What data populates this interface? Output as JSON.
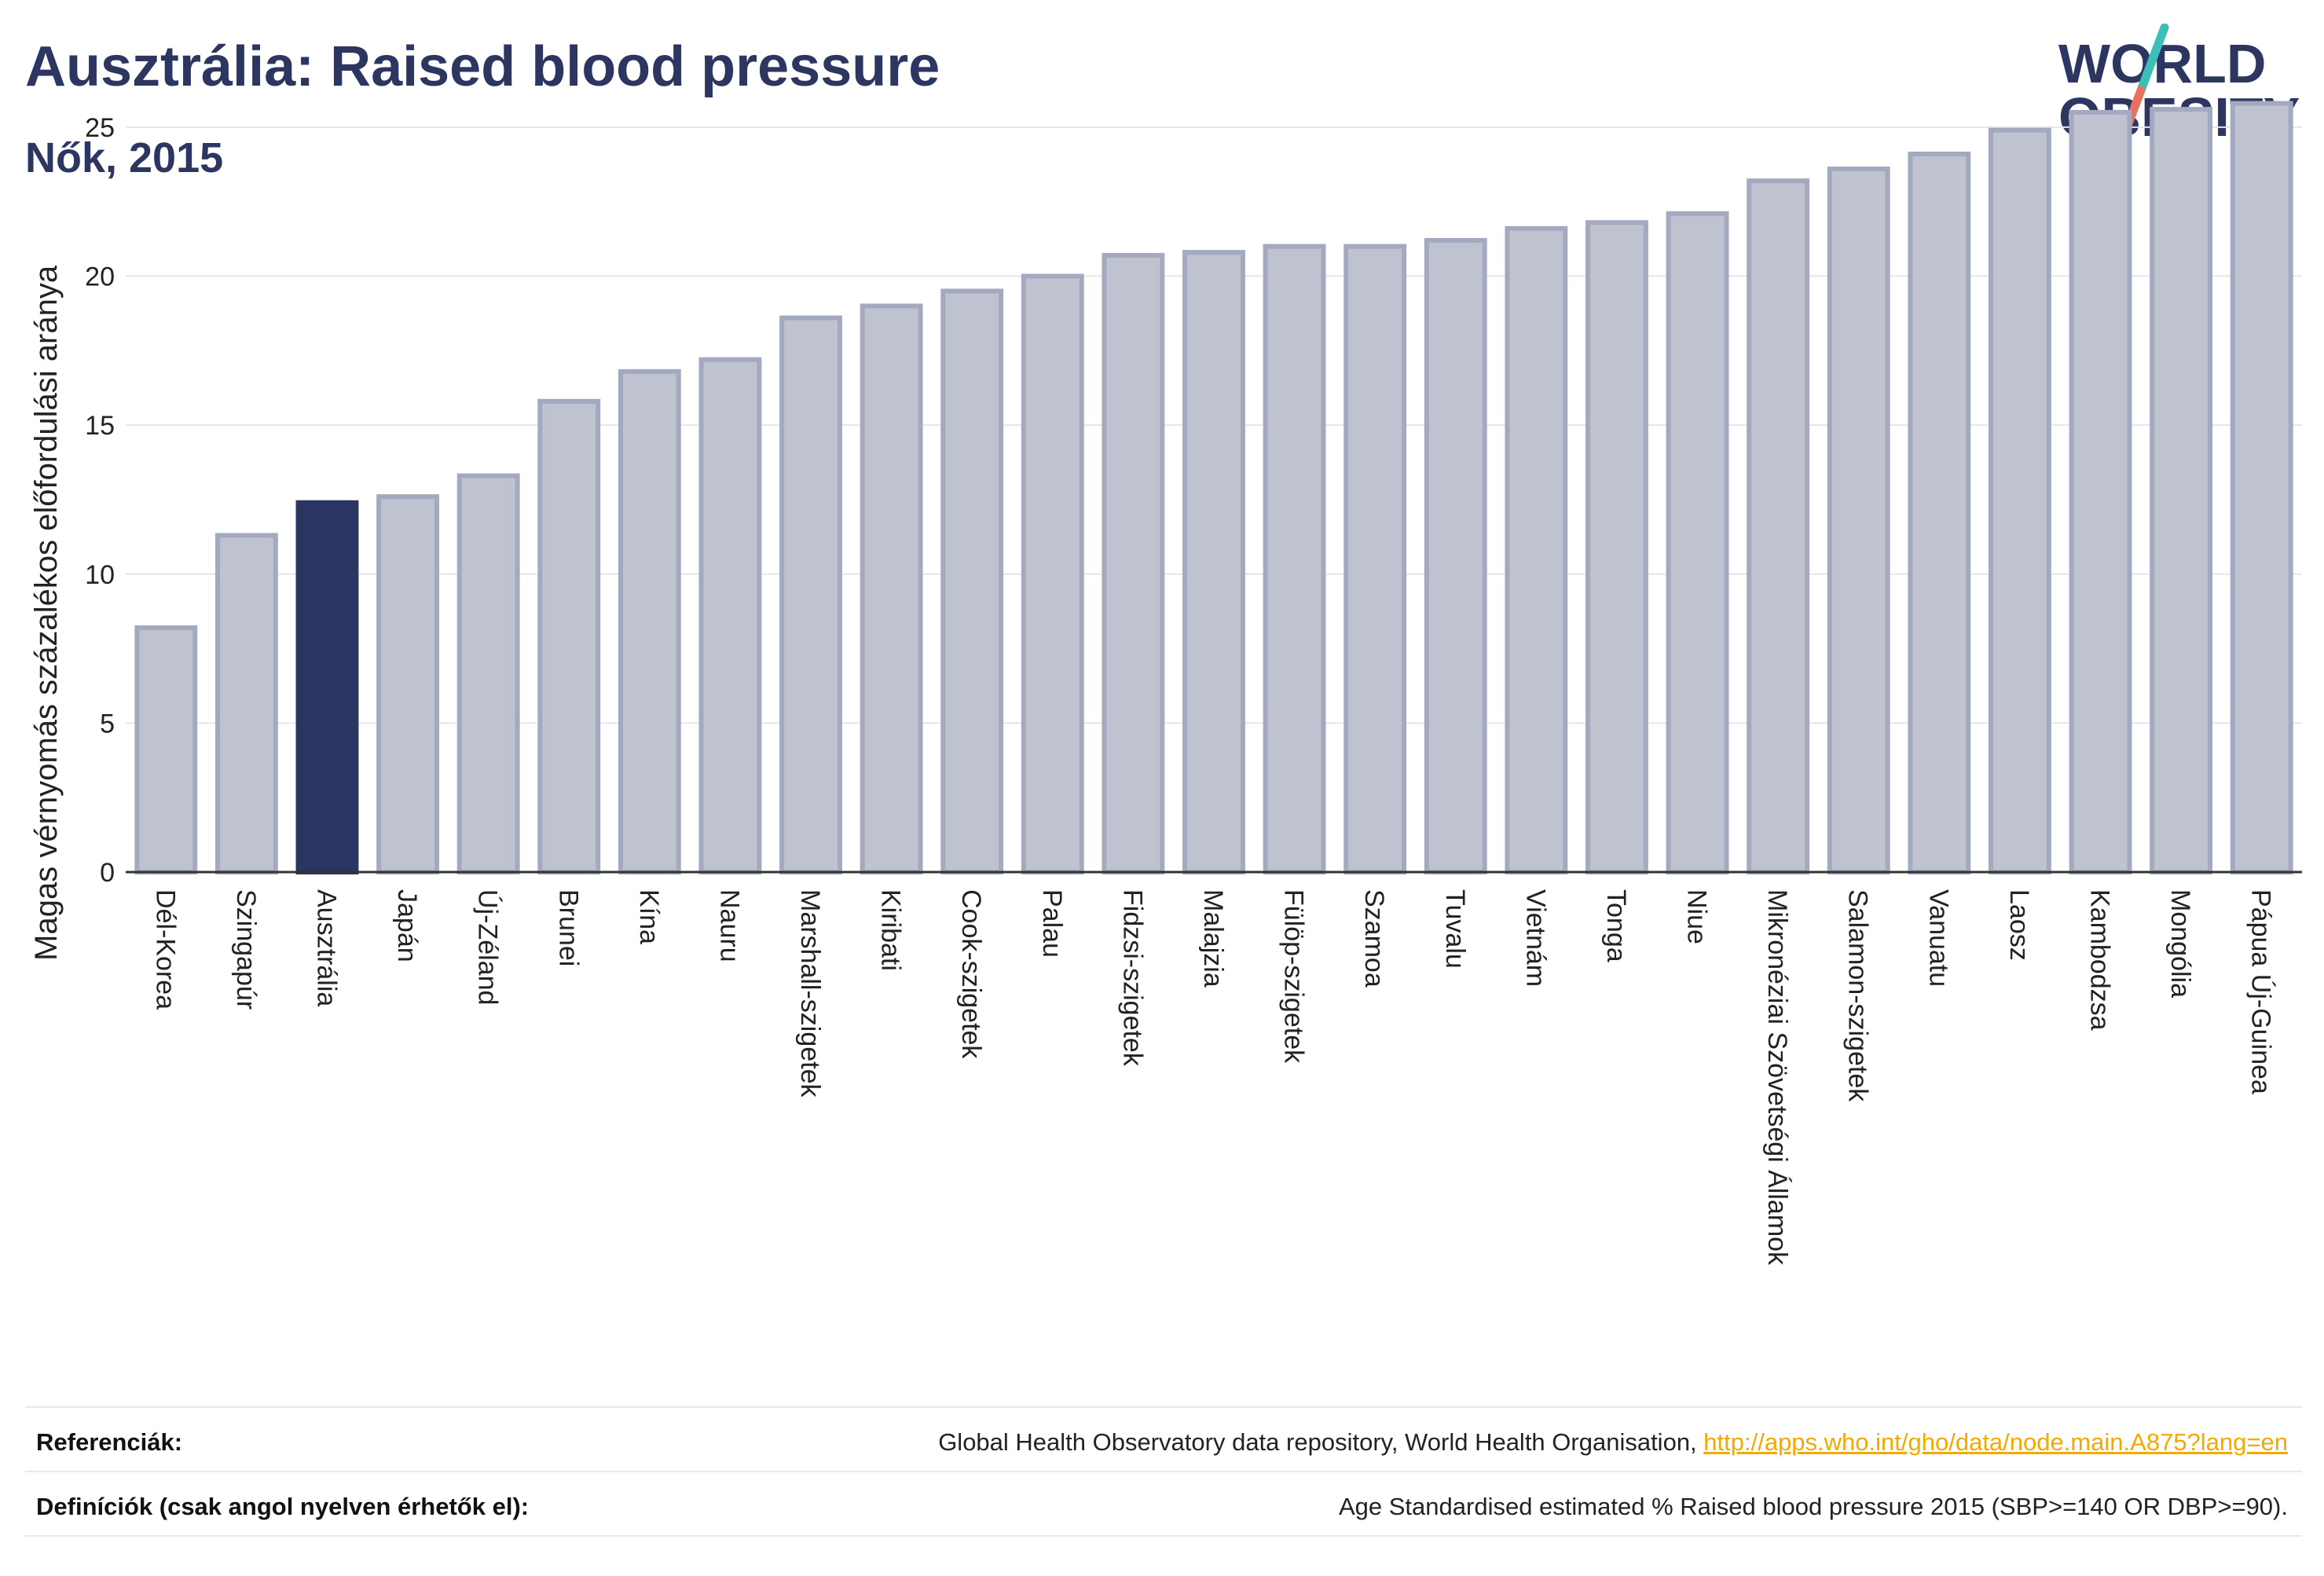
{
  "title": "Ausztrália: Raised blood pressure",
  "subtitle": "Nők, 2015",
  "logo": {
    "line1": "WORLD",
    "line2": "OBESITY"
  },
  "colors": {
    "title": "#2c3660",
    "bar_highlight": "#2b3561",
    "bar_default": "#bfc3d0",
    "bar_stroke": "#a3a9bf",
    "logo_text": "#2c3660",
    "logo_teal": "#3dbfb8",
    "logo_coral": "#e8715f",
    "link": "#f2a900"
  },
  "chart_data": {
    "type": "bar",
    "ylabel": "Magas vérnyomás százalékos előfordulási aránya",
    "xlabel": "",
    "ylim": [
      0,
      26.5
    ],
    "yticks": [
      0,
      5,
      10,
      15,
      20,
      25
    ],
    "grid": true,
    "highlight": "Ausztrália",
    "categories": [
      "Dél-Korea",
      "Szingapúr",
      "Ausztrália",
      "Japán",
      "Új-Zéland",
      "Brunei",
      "Kína",
      "Nauru",
      "Marshall-szigetek",
      "Kiribati",
      "Cook-szigetek",
      "Palau",
      "Fidzsi-szigetek",
      "Malajzia",
      "Fülöp-szigetek",
      "Szamoa",
      "Tuvalu",
      "Vietnám",
      "Tonga",
      "Niue",
      "Mikronéziai Szövetségi Államok",
      "Salamon-szigetek",
      "Vanuatu",
      "Laosz",
      "Kambodzsa",
      "Mongólia",
      "Pápua Új-Guinea"
    ],
    "values": [
      8.2,
      11.3,
      12.4,
      12.6,
      13.3,
      15.8,
      16.8,
      17.2,
      18.6,
      19.0,
      19.5,
      20.0,
      20.7,
      20.8,
      21.0,
      21.0,
      21.2,
      21.6,
      21.8,
      22.1,
      23.2,
      23.6,
      24.1,
      24.9,
      25.5,
      25.6,
      25.8
    ]
  },
  "footer": {
    "references_label": "Referenciák:",
    "references_text": "Global Health Observatory data repository, World Health Organisation, ",
    "references_link": "http://apps.who.int/gho/data/node.main.A875?lang=en",
    "definitions_label": "Definíciók (csak angol nyelven érhetők el):",
    "definitions_text": "Age Standardised estimated % Raised blood pressure 2015 (SBP>=140 OR DBP>=90)."
  }
}
